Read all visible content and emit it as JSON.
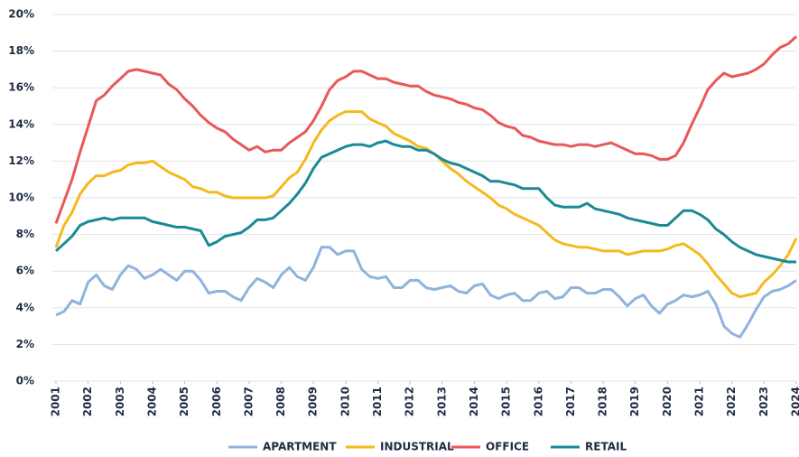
{
  "chart_data": {
    "type": "line",
    "x": [
      2001,
      2001.25,
      2001.5,
      2001.75,
      2002,
      2002.25,
      2002.5,
      2002.75,
      2003,
      2003.25,
      2003.5,
      2003.75,
      2004,
      2004.25,
      2004.5,
      2004.75,
      2005,
      2005.25,
      2005.5,
      2005.75,
      2006,
      2006.25,
      2006.5,
      2006.75,
      2007,
      2007.25,
      2007.5,
      2007.75,
      2008,
      2008.25,
      2008.5,
      2008.75,
      2009,
      2009.25,
      2009.5,
      2009.75,
      2010,
      2010.25,
      2010.5,
      2010.75,
      2011,
      2011.25,
      2011.5,
      2011.75,
      2012,
      2012.25,
      2012.5,
      2012.75,
      2013,
      2013.25,
      2013.5,
      2013.75,
      2014,
      2014.25,
      2014.5,
      2014.75,
      2015,
      2015.25,
      2015.5,
      2015.75,
      2016,
      2016.25,
      2016.5,
      2016.75,
      2017,
      2017.25,
      2017.5,
      2017.75,
      2018,
      2018.25,
      2018.5,
      2018.75,
      2019,
      2019.25,
      2019.5,
      2019.75,
      2020,
      2020.25,
      2020.5,
      2020.75,
      2021,
      2021.25,
      2021.5,
      2021.75,
      2022,
      2022.25,
      2022.5,
      2022.75,
      2023,
      2023.25,
      2023.5,
      2023.75,
      2024
    ],
    "series": [
      {
        "name": "APARTMENT",
        "color": "#8fb3dd",
        "values": [
          3.6,
          3.8,
          4.4,
          4.2,
          5.4,
          5.8,
          5.2,
          5.0,
          5.8,
          6.3,
          6.1,
          5.6,
          5.8,
          6.1,
          5.8,
          5.5,
          6.0,
          6.0,
          5.5,
          4.8,
          4.9,
          4.9,
          4.6,
          4.4,
          5.1,
          5.6,
          5.4,
          5.1,
          5.8,
          6.2,
          5.7,
          5.5,
          6.2,
          7.3,
          7.3,
          6.9,
          7.1,
          7.1,
          6.1,
          5.7,
          5.6,
          5.7,
          5.1,
          5.1,
          5.5,
          5.5,
          5.1,
          5.0,
          5.1,
          5.2,
          4.9,
          4.8,
          5.2,
          5.3,
          4.7,
          4.5,
          4.7,
          4.8,
          4.4,
          4.4,
          4.8,
          4.9,
          4.5,
          4.6,
          5.1,
          5.1,
          4.8,
          4.8,
          5.0,
          5.0,
          4.6,
          4.1,
          4.5,
          4.7,
          4.1,
          3.7,
          4.2,
          4.4,
          4.7,
          4.6,
          4.7,
          4.9,
          4.2,
          3.0,
          2.6,
          2.4,
          3.1,
          3.9,
          4.6,
          4.9,
          5.0,
          5.2,
          5.5
        ]
      },
      {
        "name": "INDUSTRIAL",
        "color": "#f5b91e",
        "values": [
          7.3,
          8.5,
          9.2,
          10.2,
          10.8,
          11.2,
          11.2,
          11.4,
          11.5,
          11.8,
          11.9,
          11.9,
          12.0,
          11.7,
          11.4,
          11.2,
          11.0,
          10.6,
          10.5,
          10.3,
          10.3,
          10.1,
          10.0,
          10.0,
          10.0,
          10.0,
          10.0,
          10.1,
          10.6,
          11.1,
          11.4,
          12.1,
          13.0,
          13.7,
          14.2,
          14.5,
          14.7,
          14.7,
          14.7,
          14.3,
          14.1,
          13.9,
          13.5,
          13.3,
          13.1,
          12.8,
          12.7,
          12.4,
          12.0,
          11.6,
          11.3,
          10.9,
          10.6,
          10.3,
          10.0,
          9.6,
          9.4,
          9.1,
          8.9,
          8.7,
          8.5,
          8.1,
          7.7,
          7.5,
          7.4,
          7.3,
          7.3,
          7.2,
          7.1,
          7.1,
          7.1,
          6.9,
          7.0,
          7.1,
          7.1,
          7.1,
          7.2,
          7.4,
          7.5,
          7.2,
          6.9,
          6.4,
          5.8,
          5.3,
          4.8,
          4.6,
          4.7,
          4.8,
          5.4,
          5.8,
          6.3,
          6.9,
          7.8
        ]
      },
      {
        "name": "OFFICE",
        "color": "#e8585a",
        "values": [
          8.6,
          9.8,
          11.0,
          12.5,
          13.9,
          15.3,
          15.6,
          16.1,
          16.5,
          16.9,
          17.0,
          16.9,
          16.8,
          16.7,
          16.2,
          15.9,
          15.4,
          15.0,
          14.5,
          14.1,
          13.8,
          13.6,
          13.2,
          12.9,
          12.6,
          12.8,
          12.5,
          12.6,
          12.6,
          13.0,
          13.3,
          13.6,
          14.2,
          15.0,
          15.9,
          16.4,
          16.6,
          16.9,
          16.9,
          16.7,
          16.5,
          16.5,
          16.3,
          16.2,
          16.1,
          16.1,
          15.8,
          15.6,
          15.5,
          15.4,
          15.2,
          15.1,
          14.9,
          14.8,
          14.5,
          14.1,
          13.9,
          13.8,
          13.4,
          13.3,
          13.1,
          13.0,
          12.9,
          12.9,
          12.8,
          12.9,
          12.9,
          12.8,
          12.9,
          13.0,
          12.8,
          12.6,
          12.4,
          12.4,
          12.3,
          12.1,
          12.1,
          12.3,
          13.0,
          14.0,
          14.9,
          15.9,
          16.4,
          16.8,
          16.6,
          16.7,
          16.8,
          17.0,
          17.3,
          17.8,
          18.2,
          18.4,
          18.8
        ]
      },
      {
        "name": "RETAIL",
        "color": "#1a8a96",
        "values": [
          7.1,
          7.5,
          7.9,
          8.5,
          8.7,
          8.8,
          8.9,
          8.8,
          8.9,
          8.9,
          8.9,
          8.9,
          8.7,
          8.6,
          8.5,
          8.4,
          8.4,
          8.3,
          8.2,
          7.4,
          7.6,
          7.9,
          8.0,
          8.1,
          8.4,
          8.8,
          8.8,
          8.9,
          9.3,
          9.7,
          10.2,
          10.8,
          11.6,
          12.2,
          12.4,
          12.6,
          12.8,
          12.9,
          12.9,
          12.8,
          13.0,
          13.1,
          12.9,
          12.8,
          12.8,
          12.6,
          12.6,
          12.4,
          12.1,
          11.9,
          11.8,
          11.6,
          11.4,
          11.2,
          10.9,
          10.9,
          10.8,
          10.7,
          10.5,
          10.5,
          10.5,
          10.0,
          9.6,
          9.5,
          9.5,
          9.5,
          9.7,
          9.4,
          9.3,
          9.2,
          9.1,
          8.9,
          8.8,
          8.7,
          8.6,
          8.5,
          8.5,
          8.9,
          9.3,
          9.3,
          9.1,
          8.8,
          8.3,
          8.0,
          7.6,
          7.3,
          7.1,
          6.9,
          6.8,
          6.7,
          6.6,
          6.5,
          6.5
        ]
      }
    ],
    "xlim": [
      2001,
      2024
    ],
    "xticks": [
      2001,
      2002,
      2003,
      2004,
      2005,
      2006,
      2007,
      2008,
      2009,
      2010,
      2011,
      2012,
      2013,
      2014,
      2015,
      2016,
      2017,
      2018,
      2019,
      2020,
      2021,
      2022,
      2023,
      2024
    ],
    "ylim": [
      0,
      20
    ],
    "yticks": [
      {
        "value": 0,
        "label": "0%"
      },
      {
        "value": 2,
        "label": "2%"
      },
      {
        "value": 4,
        "label": "4%"
      },
      {
        "value": 6,
        "label": "6%"
      },
      {
        "value": 8,
        "label": "8%"
      },
      {
        "value": 10,
        "label": "10%"
      },
      {
        "value": 12,
        "label": "12%"
      },
      {
        "value": 14,
        "label": "14%"
      },
      {
        "value": 16,
        "label": "16%"
      },
      {
        "value": 18,
        "label": "18%"
      },
      {
        "value": 20,
        "label": "20%"
      }
    ],
    "grid": true
  }
}
